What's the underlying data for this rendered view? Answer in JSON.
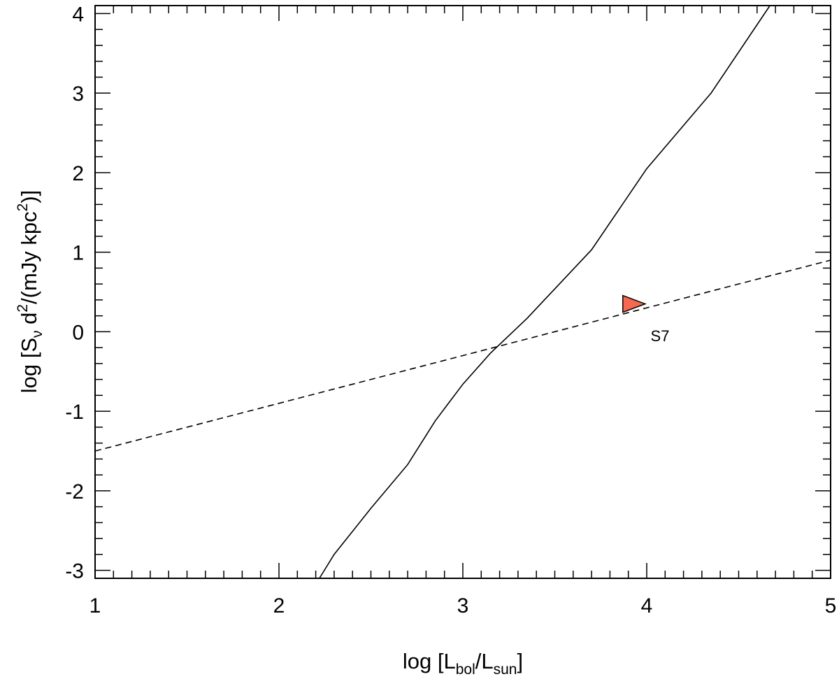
{
  "chart_data": {
    "type": "line",
    "title": "",
    "xlabel": {
      "prefix": "log [L",
      "sub1": "bol",
      "mid": "/L",
      "sub2": "sun",
      "suffix": "]"
    },
    "ylabel": {
      "prefix": "log [S",
      "sub1": "ν",
      "mid1": " d",
      "sup1": "2",
      "mid2": "/(mJy kpc",
      "sup2": "2",
      "suffix": ")]"
    },
    "xlim": [
      1,
      5
    ],
    "ylim": [
      -3.1,
      4.1
    ],
    "xticks": [
      1,
      2,
      3,
      4,
      5
    ],
    "xtick_labels": [
      "1",
      "2",
      "3",
      "4",
      "5"
    ],
    "yticks": [
      -3,
      -2,
      -1,
      0,
      1,
      2,
      3,
      4
    ],
    "ytick_labels": [
      "-3",
      "-2",
      "-1",
      "0",
      "1",
      "2",
      "3",
      "4"
    ],
    "grid": false,
    "series": [
      {
        "style": "solid",
        "color": "#000000",
        "x": [
          2.22,
          2.3,
          2.5,
          2.7,
          2.85,
          3.0,
          3.15,
          3.35,
          3.7,
          4.0,
          4.35,
          4.67
        ],
        "y": [
          -3.1,
          -2.8,
          -2.22,
          -1.67,
          -1.12,
          -0.66,
          -0.27,
          0.17,
          1.03,
          2.05,
          3.0,
          4.1
        ]
      },
      {
        "style": "dashed",
        "color": "#000000",
        "x": [
          1.0,
          5.0
        ],
        "y": [
          -1.5,
          0.9
        ]
      }
    ],
    "markers": [
      {
        "shape": "triangle-right",
        "x": 3.87,
        "y": 0.35,
        "color": "#f4694f",
        "label": "S7"
      }
    ]
  }
}
